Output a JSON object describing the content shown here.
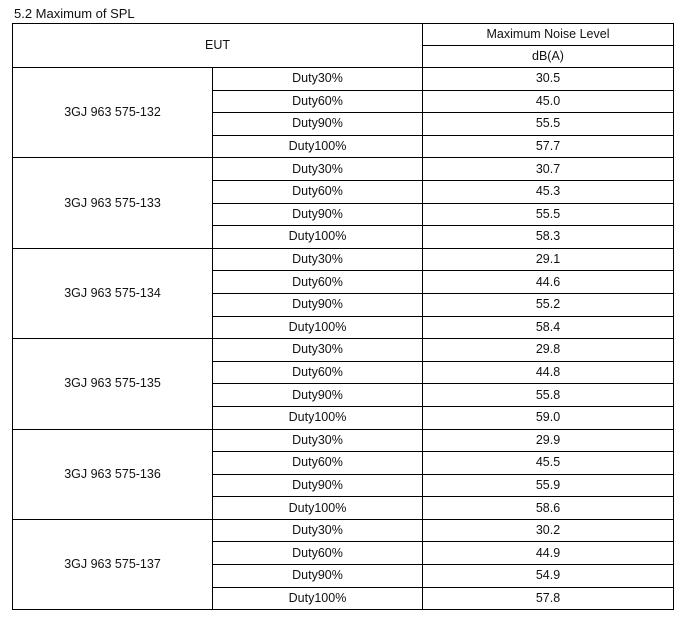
{
  "section_title": "5.2 Maximum of SPL",
  "table": {
    "header_eut": "EUT",
    "header_level": "Maximum Noise Level",
    "header_unit": "dB(A)",
    "groups": [
      {
        "model": "3GJ 963 575-132",
        "rows": [
          {
            "duty": "Duty30%",
            "value": "30.5"
          },
          {
            "duty": "Duty60%",
            "value": "45.0"
          },
          {
            "duty": "Duty90%",
            "value": "55.5"
          },
          {
            "duty": "Duty100%",
            "value": "57.7"
          }
        ]
      },
      {
        "model": "3GJ 963 575-133",
        "rows": [
          {
            "duty": "Duty30%",
            "value": "30.7"
          },
          {
            "duty": "Duty60%",
            "value": "45.3"
          },
          {
            "duty": "Duty90%",
            "value": "55.5"
          },
          {
            "duty": "Duty100%",
            "value": "58.3"
          }
        ]
      },
      {
        "model": "3GJ 963 575-134",
        "rows": [
          {
            "duty": "Duty30%",
            "value": "29.1"
          },
          {
            "duty": "Duty60%",
            "value": "44.6"
          },
          {
            "duty": "Duty90%",
            "value": "55.2"
          },
          {
            "duty": "Duty100%",
            "value": "58.4"
          }
        ]
      },
      {
        "model": "3GJ 963 575-135",
        "rows": [
          {
            "duty": "Duty30%",
            "value": "29.8"
          },
          {
            "duty": "Duty60%",
            "value": "44.8"
          },
          {
            "duty": "Duty90%",
            "value": "55.8"
          },
          {
            "duty": "Duty100%",
            "value": "59.0"
          }
        ]
      },
      {
        "model": "3GJ 963 575-136",
        "rows": [
          {
            "duty": "Duty30%",
            "value": "29.9"
          },
          {
            "duty": "Duty60%",
            "value": "45.5"
          },
          {
            "duty": "Duty90%",
            "value": "55.9"
          },
          {
            "duty": "Duty100%",
            "value": "58.6"
          }
        ]
      },
      {
        "model": "3GJ 963 575-137",
        "rows": [
          {
            "duty": "Duty30%",
            "value": "30.2"
          },
          {
            "duty": "Duty60%",
            "value": "44.9"
          },
          {
            "duty": "Duty90%",
            "value": "54.9"
          },
          {
            "duty": "Duty100%",
            "value": "57.8"
          }
        ]
      }
    ]
  }
}
